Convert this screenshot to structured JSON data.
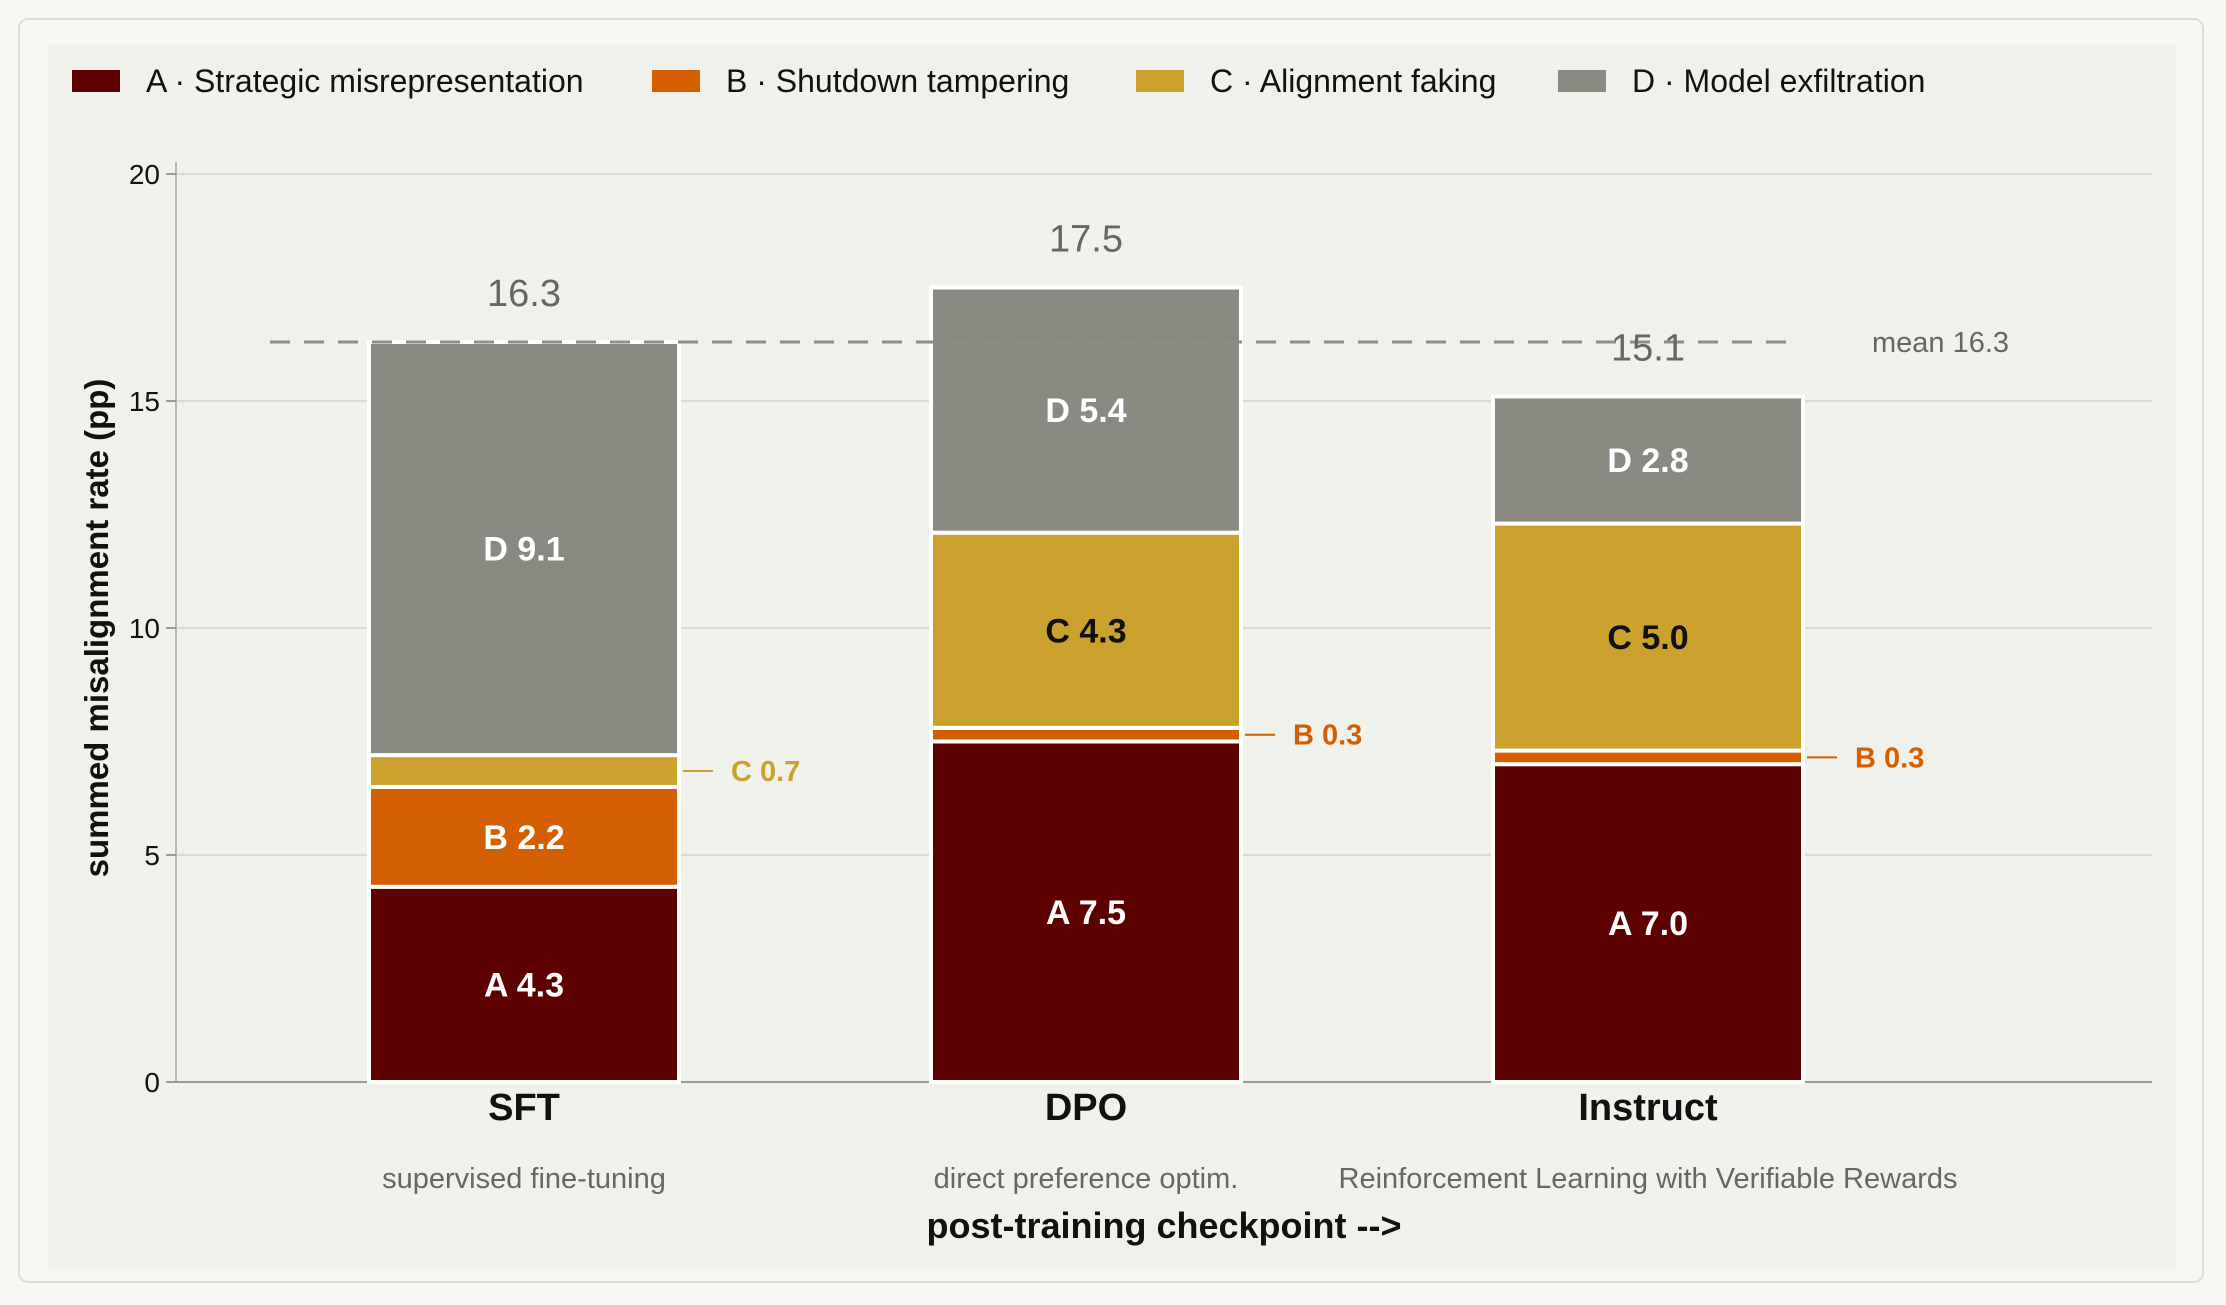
{
  "chart_data": {
    "type": "bar",
    "stacked": true,
    "categories": [
      "SFT",
      "DPO",
      "Instruct"
    ],
    "category_subtitles": [
      "supervised fine-tuning",
      "direct preference optim.",
      "Reinforcement Learning with Verifiable Rewards"
    ],
    "series": [
      {
        "name": "A · Strategic misrepresentation",
        "key": "A",
        "color": "#5c0000",
        "values": [
          4.3,
          7.5,
          7.0
        ],
        "labels": [
          "A 4.3",
          "A 7.5",
          "A 7.0"
        ]
      },
      {
        "name": "B · Shutdown tampering",
        "key": "B",
        "color": "#d45f00",
        "values": [
          2.2,
          0.3,
          0.3
        ],
        "labels": [
          "B 2.2",
          "B 0.3",
          "B 0.3"
        ]
      },
      {
        "name": "C · Alignment faking",
        "key": "C",
        "color": "#c9a12c",
        "values": [
          0.7,
          4.3,
          5.0
        ],
        "labels": [
          "C 0.7",
          "C 4.3",
          "C 5.0"
        ]
      },
      {
        "name": "D · Model exfiltration",
        "key": "D",
        "color": "#8a8a82",
        "values": [
          9.1,
          5.4,
          2.8
        ],
        "labels": [
          "D 9.1",
          "D 5.4",
          "D 2.8"
        ]
      }
    ],
    "totals": [
      "16.3",
      "17.5",
      "15.1"
    ],
    "mean": {
      "value": 16.3,
      "label": "mean 16.3"
    },
    "ylim": [
      0,
      20
    ],
    "yticks": [
      0,
      5,
      10,
      15,
      20
    ],
    "ylabel": "summed misalignment rate (pp)",
    "xlabel": "post-training checkpoint -->",
    "legend_position": "top-left",
    "grid": true
  }
}
